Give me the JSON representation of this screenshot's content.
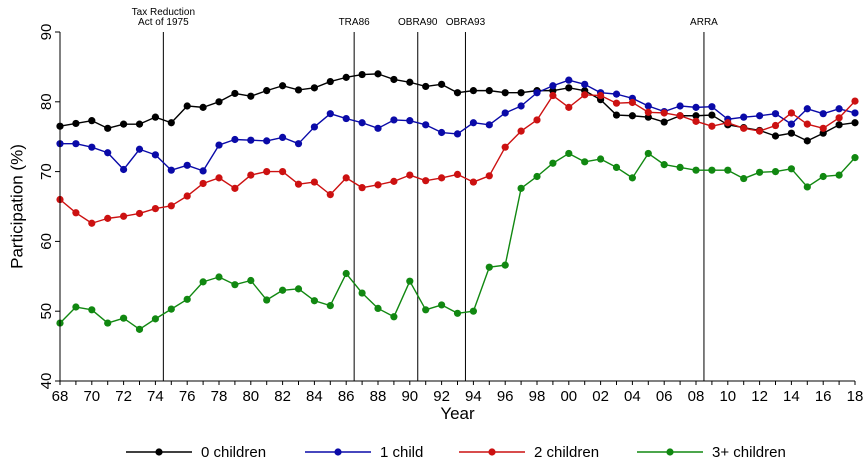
{
  "chart_data": {
    "type": "line",
    "title": "",
    "xlabel": "Year",
    "ylabel": "Participation (%)",
    "xlim": [
      1968,
      2018
    ],
    "ylim": [
      40,
      90
    ],
    "y_ticks": [
      40,
      50,
      60,
      70,
      80,
      90
    ],
    "x_ticks": [
      1968,
      1970,
      1972,
      1974,
      1976,
      1978,
      1980,
      1982,
      1984,
      1986,
      1988,
      1990,
      1992,
      1994,
      1996,
      1998,
      2000,
      2002,
      2004,
      2006,
      2008,
      2010,
      2012,
      2014,
      2016,
      2018
    ],
    "x_tick_labels": [
      "68",
      "70",
      "72",
      "74",
      "76",
      "78",
      "80",
      "82",
      "84",
      "86",
      "88",
      "90",
      "92",
      "94",
      "96",
      "98",
      "00",
      "02",
      "04",
      "06",
      "08",
      "10",
      "12",
      "14",
      "16",
      "18"
    ],
    "grid": false,
    "legend_position": "bottom",
    "annotations": [
      {
        "x": 1974.5,
        "label_lines": [
          "Tax Reduction",
          "Act of 1975"
        ]
      },
      {
        "x": 1986.5,
        "label_lines": [
          "TRA86"
        ]
      },
      {
        "x": 1990.5,
        "label_lines": [
          "OBRA90"
        ]
      },
      {
        "x": 1993.5,
        "label_lines": [
          "OBRA93"
        ]
      },
      {
        "x": 2008.5,
        "label_lines": [
          "ARRA"
        ]
      }
    ],
    "x": [
      1968,
      1969,
      1970,
      1971,
      1972,
      1973,
      1974,
      1975,
      1976,
      1977,
      1978,
      1979,
      1980,
      1981,
      1982,
      1983,
      1984,
      1985,
      1986,
      1987,
      1988,
      1989,
      1990,
      1991,
      1992,
      1993,
      1994,
      1995,
      1996,
      1997,
      1998,
      1999,
      2000,
      2001,
      2002,
      2003,
      2004,
      2005,
      2006,
      2007,
      2008,
      2009,
      2010,
      2011,
      2012,
      2013,
      2014,
      2015,
      2016,
      2017,
      2018
    ],
    "series": [
      {
        "name": "0 children",
        "color": "#000000",
        "values": [
          76.5,
          76.9,
          77.3,
          76.2,
          76.8,
          76.8,
          77.8,
          77.0,
          79.4,
          79.2,
          80.0,
          81.2,
          80.8,
          81.6,
          82.3,
          81.7,
          82.0,
          82.9,
          83.5,
          83.9,
          84.0,
          83.2,
          82.8,
          82.2,
          82.5,
          81.3,
          81.6,
          81.6,
          81.3,
          81.3,
          81.6,
          81.6,
          82.0,
          81.6,
          80.3,
          78.1,
          78.0,
          77.8,
          77.1,
          78.0,
          78.0,
          78.1,
          76.7,
          76.3,
          75.9,
          75.1,
          75.5,
          74.4,
          75.5,
          76.7,
          77.0
        ]
      },
      {
        "name": "1 child",
        "color": "#0a0aa8",
        "values": [
          74.0,
          74.0,
          73.5,
          72.7,
          70.3,
          73.2,
          72.4,
          70.2,
          70.9,
          70.1,
          73.8,
          74.6,
          74.5,
          74.4,
          74.9,
          74.0,
          76.4,
          78.3,
          77.6,
          77.0,
          76.2,
          77.4,
          77.3,
          76.7,
          75.6,
          75.4,
          77.0,
          76.7,
          78.4,
          79.4,
          81.3,
          82.3,
          83.1,
          82.5,
          81.3,
          81.1,
          80.5,
          79.4,
          78.6,
          79.4,
          79.2,
          79.3,
          77.5,
          77.8,
          78.0,
          78.3,
          76.8,
          79.0,
          78.3,
          79.0,
          78.4
        ]
      },
      {
        "name": "2 children",
        "color": "#cc1111",
        "values": [
          66.0,
          64.1,
          62.6,
          63.3,
          63.6,
          64.0,
          64.7,
          65.1,
          66.5,
          68.3,
          69.1,
          67.6,
          69.5,
          70.0,
          70.0,
          68.2,
          68.5,
          66.7,
          69.1,
          67.7,
          68.1,
          68.6,
          69.5,
          68.7,
          69.1,
          69.6,
          68.5,
          69.4,
          73.5,
          75.8,
          77.4,
          80.9,
          79.2,
          81.0,
          80.9,
          79.8,
          79.9,
          78.5,
          78.4,
          78.0,
          77.2,
          76.5,
          77.0,
          76.2,
          75.8,
          76.6,
          78.4,
          76.8,
          76.2,
          77.7,
          80.1
        ]
      },
      {
        "name": "3+ children",
        "color": "#118811",
        "values": [
          48.3,
          50.6,
          50.2,
          48.3,
          49.0,
          47.4,
          48.9,
          50.3,
          51.7,
          54.2,
          54.9,
          53.8,
          54.4,
          51.6,
          53.0,
          53.2,
          51.5,
          50.8,
          55.4,
          52.6,
          50.4,
          49.2,
          54.3,
          50.2,
          50.9,
          49.7,
          50.0,
          56.3,
          56.6,
          67.6,
          69.3,
          71.2,
          72.6,
          71.4,
          71.8,
          70.6,
          69.1,
          72.6,
          71.0,
          70.6,
          70.2,
          70.2,
          70.2,
          69.0,
          69.9,
          70.0,
          70.4,
          67.8,
          69.3,
          69.5,
          72.0
        ]
      }
    ]
  }
}
